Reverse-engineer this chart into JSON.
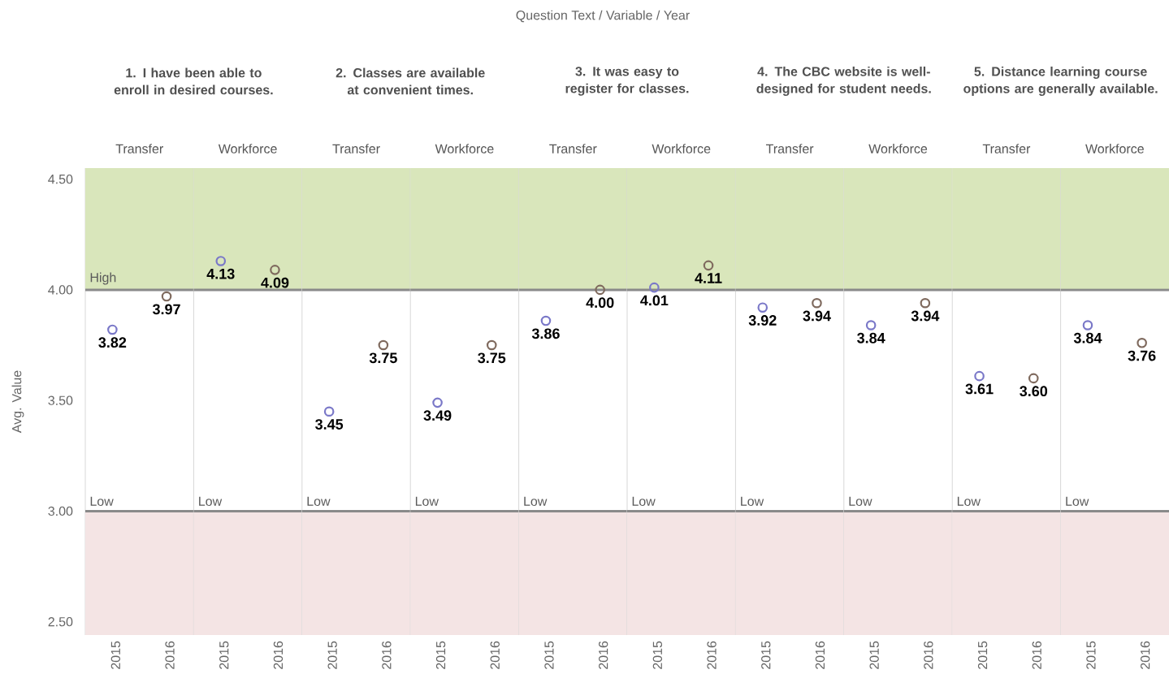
{
  "chart_data": [
    {
      "type": "scatter",
      "title": "1. I have been able to enroll in desired courses.",
      "subtitle": "Transfer",
      "ylabel": "Avg. Value",
      "annotations": [
        "Question Text  /  Variable  /  Year"
      ],
      "categories": [
        "2015",
        "2016"
      ],
      "values": [
        3.82,
        3.97
      ],
      "colors": [
        "#7a78c8",
        "#7f6a5e"
      ],
      "value_labels": [
        "3.82",
        "3.97"
      ],
      "ylim": [
        2.44,
        4.55
      ],
      "yticks": [
        {
          "value": 2.5,
          "label": "2.50"
        },
        {
          "value": 3.0,
          "label": "3.00"
        },
        {
          "value": 3.5,
          "label": "3.50"
        },
        {
          "value": 4.0,
          "label": "4.00"
        },
        {
          "value": 4.5,
          "label": "4.50"
        }
      ],
      "marker": "circle",
      "bands": [
        {
          "axis": "y",
          "from": 4.0,
          "to": 4.55,
          "color": "#d9e6bb"
        },
        {
          "axis": "y",
          "from": 2.44,
          "to": 3.0,
          "color": "#f4e4e4"
        }
      ],
      "ref_lines": [
        {
          "axis": "y",
          "value": 4.0,
          "label": "High",
          "color": "#8a8a8a"
        },
        {
          "axis": "y",
          "value": 3.0,
          "label": "Low",
          "color": "#8a8a8a"
        }
      ]
    },
    {
      "type": "scatter",
      "subtitle": "Workforce",
      "categories": [
        "2015",
        "2016"
      ],
      "values": [
        4.13,
        4.09
      ],
      "colors": [
        "#7a78c8",
        "#7f6a5e"
      ],
      "value_labels": [
        "4.13",
        "4.09"
      ],
      "ylim": [
        2.44,
        4.55
      ],
      "tick_labels": "x",
      "marker": "circle",
      "bands": [
        {
          "axis": "y",
          "from": 4.0,
          "to": 4.55,
          "color": "#d9e6bb"
        },
        {
          "axis": "y",
          "from": 2.44,
          "to": 3.0,
          "color": "#f4e4e4"
        }
      ],
      "ref_lines": [
        {
          "axis": "y",
          "value": 4.0,
          "color": "#8a8a8a"
        },
        {
          "axis": "y",
          "value": 3.0,
          "label": "Low",
          "color": "#8a8a8a"
        }
      ]
    },
    {
      "type": "scatter",
      "title": "2. Classes are available at convenient times.",
      "subtitle": "Transfer",
      "categories": [
        "2015",
        "2016"
      ],
      "values": [
        3.45,
        3.75
      ],
      "colors": [
        "#7a78c8",
        "#7f6a5e"
      ],
      "value_labels": [
        "3.45",
        "3.75"
      ],
      "ylim": [
        2.44,
        4.55
      ],
      "tick_labels": "x",
      "marker": "circle",
      "bands": [
        {
          "axis": "y",
          "from": 4.0,
          "to": 4.55,
          "color": "#d9e6bb"
        },
        {
          "axis": "y",
          "from": 2.44,
          "to": 3.0,
          "color": "#f4e4e4"
        }
      ],
      "ref_lines": [
        {
          "axis": "y",
          "value": 4.0,
          "color": "#8a8a8a"
        },
        {
          "axis": "y",
          "value": 3.0,
          "label": "Low",
          "color": "#8a8a8a"
        }
      ]
    },
    {
      "type": "scatter",
      "subtitle": "Workforce",
      "categories": [
        "2015",
        "2016"
      ],
      "values": [
        3.49,
        3.75
      ],
      "colors": [
        "#7a78c8",
        "#7f6a5e"
      ],
      "value_labels": [
        "3.49",
        "3.75"
      ],
      "ylim": [
        2.44,
        4.55
      ],
      "tick_labels": "x",
      "marker": "circle",
      "bands": [
        {
          "axis": "y",
          "from": 4.0,
          "to": 4.55,
          "color": "#d9e6bb"
        },
        {
          "axis": "y",
          "from": 2.44,
          "to": 3.0,
          "color": "#f4e4e4"
        }
      ],
      "ref_lines": [
        {
          "axis": "y",
          "value": 4.0,
          "color": "#8a8a8a"
        },
        {
          "axis": "y",
          "value": 3.0,
          "label": "Low",
          "color": "#8a8a8a"
        }
      ]
    },
    {
      "type": "scatter",
      "title": "3. It was easy to register for classes.",
      "subtitle": "Transfer",
      "categories": [
        "2015",
        "2016"
      ],
      "values": [
        3.86,
        4.0
      ],
      "colors": [
        "#7a78c8",
        "#7f6a5e"
      ],
      "value_labels": [
        "3.86",
        "4.00"
      ],
      "ylim": [
        2.44,
        4.55
      ],
      "tick_labels": "x",
      "marker": "circle",
      "bands": [
        {
          "axis": "y",
          "from": 4.0,
          "to": 4.55,
          "color": "#d9e6bb"
        },
        {
          "axis": "y",
          "from": 2.44,
          "to": 3.0,
          "color": "#f4e4e4"
        }
      ],
      "ref_lines": [
        {
          "axis": "y",
          "value": 4.0,
          "color": "#8a8a8a"
        },
        {
          "axis": "y",
          "value": 3.0,
          "label": "Low",
          "color": "#8a8a8a"
        }
      ]
    },
    {
      "type": "scatter",
      "subtitle": "Workforce",
      "categories": [
        "2015",
        "2016"
      ],
      "values": [
        4.01,
        4.11
      ],
      "colors": [
        "#7a78c8",
        "#7f6a5e"
      ],
      "value_labels": [
        "4.01",
        "4.11"
      ],
      "ylim": [
        2.44,
        4.55
      ],
      "tick_labels": "x",
      "marker": "circle",
      "bands": [
        {
          "axis": "y",
          "from": 4.0,
          "to": 4.55,
          "color": "#d9e6bb"
        },
        {
          "axis": "y",
          "from": 2.44,
          "to": 3.0,
          "color": "#f4e4e4"
        }
      ],
      "ref_lines": [
        {
          "axis": "y",
          "value": 4.0,
          "color": "#8a8a8a"
        },
        {
          "axis": "y",
          "value": 3.0,
          "label": "Low",
          "color": "#8a8a8a"
        }
      ]
    },
    {
      "type": "scatter",
      "title": "4. The CBC website is well-designed for student needs.",
      "subtitle": "Transfer",
      "categories": [
        "2015",
        "2016"
      ],
      "values": [
        3.92,
        3.94
      ],
      "colors": [
        "#7a78c8",
        "#7f6a5e"
      ],
      "value_labels": [
        "3.92",
        "3.94"
      ],
      "ylim": [
        2.44,
        4.55
      ],
      "tick_labels": "x",
      "marker": "circle",
      "bands": [
        {
          "axis": "y",
          "from": 4.0,
          "to": 4.55,
          "color": "#d9e6bb"
        },
        {
          "axis": "y",
          "from": 2.44,
          "to": 3.0,
          "color": "#f4e4e4"
        }
      ],
      "ref_lines": [
        {
          "axis": "y",
          "value": 4.0,
          "color": "#8a8a8a"
        },
        {
          "axis": "y",
          "value": 3.0,
          "label": "Low",
          "color": "#8a8a8a"
        }
      ]
    },
    {
      "type": "scatter",
      "subtitle": "Workforce",
      "categories": [
        "2015",
        "2016"
      ],
      "values": [
        3.84,
        3.94
      ],
      "colors": [
        "#7a78c8",
        "#7f6a5e"
      ],
      "value_labels": [
        "3.84",
        "3.94"
      ],
      "ylim": [
        2.44,
        4.55
      ],
      "tick_labels": "x",
      "marker": "circle",
      "bands": [
        {
          "axis": "y",
          "from": 4.0,
          "to": 4.55,
          "color": "#d9e6bb"
        },
        {
          "axis": "y",
          "from": 2.44,
          "to": 3.0,
          "color": "#f4e4e4"
        }
      ],
      "ref_lines": [
        {
          "axis": "y",
          "value": 4.0,
          "color": "#8a8a8a"
        },
        {
          "axis": "y",
          "value": 3.0,
          "label": "Low",
          "color": "#8a8a8a"
        }
      ]
    },
    {
      "type": "scatter",
      "title": "5. Distance learning course options are generally available.",
      "subtitle": "Transfer",
      "categories": [
        "2015",
        "2016"
      ],
      "values": [
        3.61,
        3.6
      ],
      "colors": [
        "#7a78c8",
        "#7f6a5e"
      ],
      "value_labels": [
        "3.61",
        "3.60"
      ],
      "ylim": [
        2.44,
        4.55
      ],
      "tick_labels": "x",
      "marker": "circle",
      "bands": [
        {
          "axis": "y",
          "from": 4.0,
          "to": 4.55,
          "color": "#d9e6bb"
        },
        {
          "axis": "y",
          "from": 2.44,
          "to": 3.0,
          "color": "#f4e4e4"
        }
      ],
      "ref_lines": [
        {
          "axis": "y",
          "value": 4.0,
          "color": "#8a8a8a"
        },
        {
          "axis": "y",
          "value": 3.0,
          "label": "Low",
          "color": "#8a8a8a"
        }
      ]
    },
    {
      "type": "scatter",
      "subtitle": "Workforce",
      "categories": [
        "2015",
        "2016"
      ],
      "values": [
        3.84,
        3.76
      ],
      "colors": [
        "#7a78c8",
        "#7f6a5e"
      ],
      "value_labels": [
        "3.84",
        "3.76"
      ],
      "ylim": [
        2.44,
        4.55
      ],
      "tick_labels": "x",
      "marker": "circle",
      "bands": [
        {
          "axis": "y",
          "from": 4.0,
          "to": 4.55,
          "color": "#d9e6bb"
        },
        {
          "axis": "y",
          "from": 2.44,
          "to": 3.0,
          "color": "#f4e4e4"
        }
      ],
      "ref_lines": [
        {
          "axis": "y",
          "value": 4.0,
          "color": "#8a8a8a"
        },
        {
          "axis": "y",
          "value": 3.0,
          "label": "Low",
          "color": "#8a8a8a"
        }
      ]
    }
  ]
}
